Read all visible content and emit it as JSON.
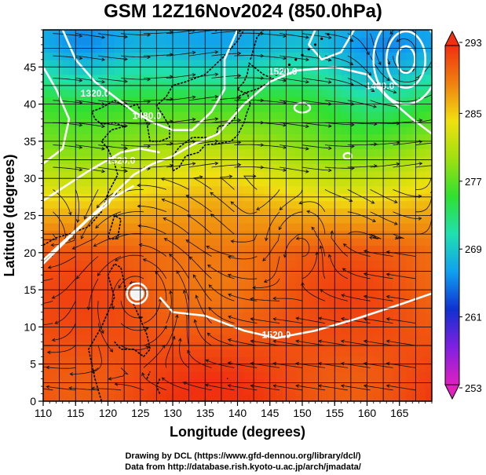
{
  "title": "GSM 12Z16Nov2024 (850.0hPa)",
  "credits": {
    "line1": "Drawing by DCL (https://www.gfd-dennou.org/library/dcl/)",
    "line2": "Data from http://database.rish.kyoto-u.ac.jp/arch/jmadata/"
  },
  "chart_data": {
    "type": "heatmap",
    "title": "GSM 12Z16Nov2024 (850.0hPa)",
    "xlabel": "Longitude (degrees)",
    "ylabel": "Latitude  (degrees)",
    "xlim": [
      110,
      170
    ],
    "ylim": [
      0,
      50
    ],
    "x_ticks": [
      "110",
      "115",
      "120",
      "125",
      "130",
      "135",
      "140",
      "145",
      "150",
      "155",
      "160",
      "165"
    ],
    "y_ticks": [
      "0",
      "5",
      "10",
      "15",
      "20",
      "25",
      "30",
      "35",
      "40",
      "45"
    ],
    "grid": true,
    "colorbar": {
      "ticks": [
        "253",
        "261",
        "269",
        "277",
        "285",
        "293"
      ],
      "min": 253,
      "max": 293,
      "colors": [
        "#e020c0",
        "#8020e0",
        "#1030d0",
        "#10a0f0",
        "#20e0b0",
        "#30e030",
        "#a0e010",
        "#f0e010",
        "#f08010",
        "#f03010"
      ]
    },
    "field_samples_lat": [
      {
        "lat": 48,
        "value": 268
      },
      {
        "lat": 44,
        "value": 272
      },
      {
        "lat": 40,
        "value": 276
      },
      {
        "lat": 35,
        "value": 279
      },
      {
        "lat": 30,
        "value": 283
      },
      {
        "lat": 25,
        "value": 287
      },
      {
        "lat": 20,
        "value": 290
      },
      {
        "lat": 10,
        "value": 291
      },
      {
        "lat": 0,
        "value": 292
      }
    ],
    "contour_labels": [
      {
        "text": "1520.0",
        "lon": 147,
        "lat": 44
      },
      {
        "text": "1520.0",
        "lon": 146,
        "lat": 8.5
      },
      {
        "text": "1480.0",
        "lon": 126,
        "lat": 38
      },
      {
        "text": "1520.0",
        "lon": 122,
        "lat": 32
      },
      {
        "text": "1320.0",
        "lon": 118,
        "lat": 41
      },
      {
        "text": "1480.0",
        "lon": 162,
        "lat": 42
      }
    ],
    "features": [
      {
        "name": "typhoon center",
        "lon": 124.5,
        "lat": 14.5
      },
      {
        "name": "high cell",
        "lon": 166,
        "lat": 46
      }
    ]
  }
}
